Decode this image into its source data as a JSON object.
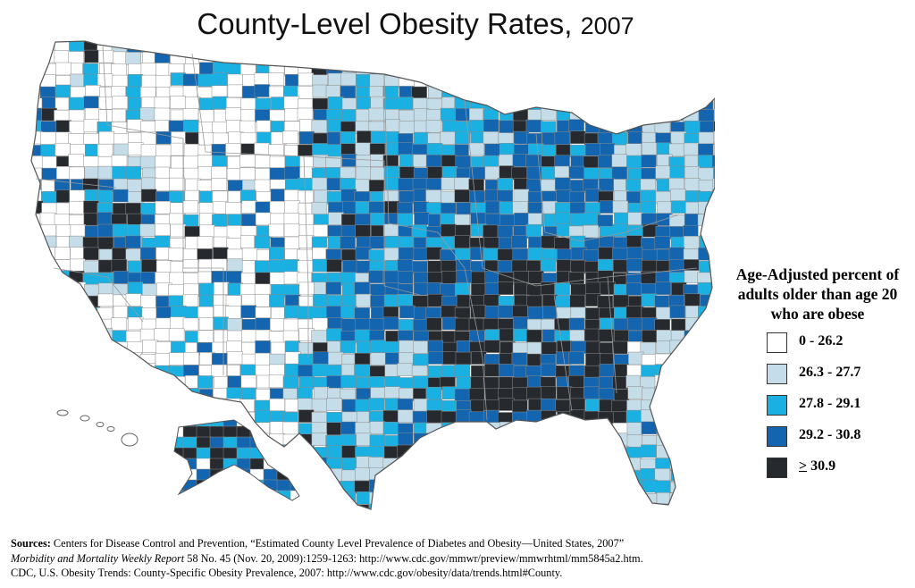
{
  "title": {
    "main": "County-Level Obesity Rates,",
    "year": "2007"
  },
  "legend": {
    "title": [
      "Age-Adjusted percent of",
      "adults older than age 20",
      "who are obese"
    ],
    "items": [
      {
        "prefix": "",
        "label": "0 - 26.2",
        "color": "#ffffff"
      },
      {
        "prefix": "",
        "label": "26.3 - 27.7",
        "color": "#c4dde8"
      },
      {
        "prefix": "",
        "label": "27.8 - 29.1",
        "color": "#1ab0e2"
      },
      {
        "prefix": "",
        "label": "29.2 - 30.8",
        "color": "#1265ae"
      },
      {
        "prefix": ">",
        "label": " 30.9",
        "color": "#262a2e"
      }
    ]
  },
  "sources": {
    "label": "Sources:",
    "line1": " Centers for Disease Control and Prevention, “Estimated County Level Prevalence of Diabetes and Obesity—United States, 2007”",
    "line2_italic": "Morbidity and Mortality Weekly Report",
    "line2_rest": " 58 No. 45 (Nov. 20, 2009):1259-1263: http://www.cdc.gov/mmwr/preview/mmwrhtml/mm5845a2.htm.",
    "line3": "CDC, U.S. Obesity Trends: County-Specific Obesity Prevalence, 2007: http://www.cdc.gov/obesity/data/trends.html#County."
  }
}
